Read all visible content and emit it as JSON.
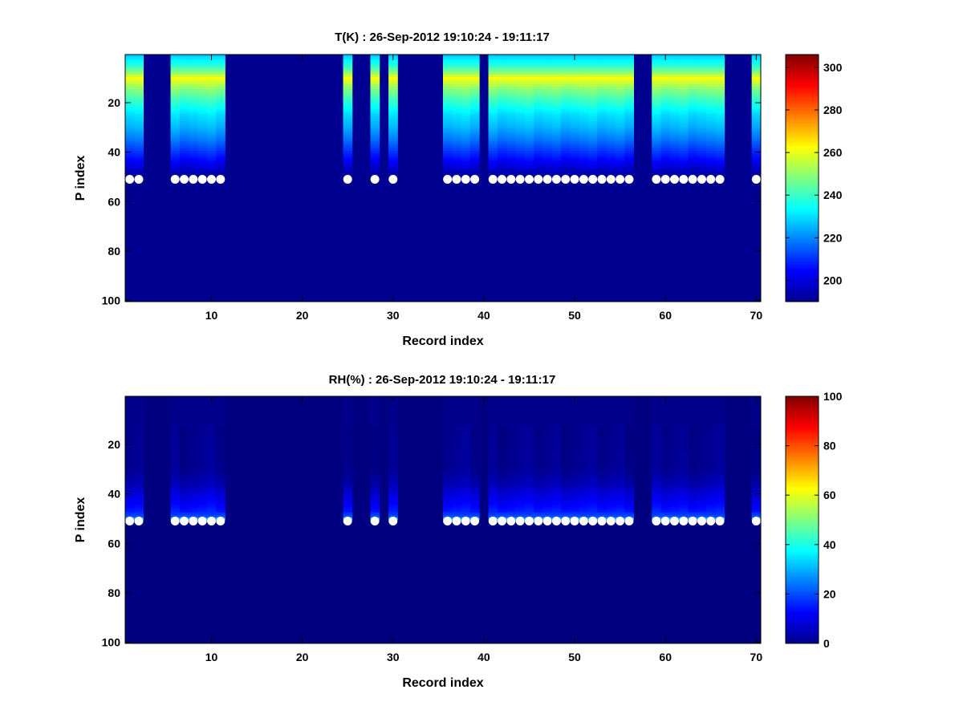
{
  "chart_data": [
    {
      "type": "heatmap",
      "title": "T(K) : 26-Sep-2012 19:10:24 - 19:11:17",
      "xlabel": "Record index",
      "ylabel": "P index",
      "xlim": [
        0.5,
        70.5
      ],
      "ylim": [
        0.5,
        100.5
      ],
      "y_reversed": true,
      "xticks": [
        10,
        20,
        30,
        40,
        50,
        60,
        70
      ],
      "yticks": [
        20,
        40,
        60,
        80,
        100
      ],
      "colormap": "jet",
      "clim": [
        190,
        306
      ],
      "colorbar_ticks": [
        200,
        220,
        240,
        260,
        280,
        300
      ],
      "background_value": 192,
      "valid_records": [
        1,
        2,
        6,
        7,
        8,
        9,
        10,
        11,
        25,
        28,
        30,
        36,
        37,
        38,
        39,
        41,
        42,
        43,
        44,
        45,
        46,
        47,
        48,
        49,
        50,
        51,
        52,
        53,
        54,
        55,
        56,
        59,
        60,
        61,
        62,
        63,
        64,
        65,
        66,
        70
      ],
      "profile_p_index": [
        1,
        5,
        8,
        10,
        12,
        15,
        20,
        25,
        30,
        35,
        40,
        45,
        48,
        50,
        51
      ],
      "profile_values": [
        228,
        238,
        250,
        262,
        256,
        248,
        238,
        230,
        225,
        218,
        210,
        202,
        196,
        193,
        192
      ],
      "markers": {
        "p_index": 51,
        "records": [
          1,
          2,
          6,
          7,
          8,
          9,
          10,
          11,
          25,
          28,
          30,
          36,
          37,
          38,
          39,
          41,
          42,
          43,
          44,
          45,
          46,
          47,
          48,
          49,
          50,
          51,
          52,
          53,
          54,
          55,
          56,
          59,
          60,
          61,
          62,
          63,
          64,
          65,
          66,
          70
        ],
        "color": "#ffffff"
      }
    },
    {
      "type": "heatmap",
      "title": "RH(%) : 26-Sep-2012 19:10:24 - 19:11:17",
      "xlabel": "Record index",
      "ylabel": "P index",
      "xlim": [
        0.5,
        70.5
      ],
      "ylim": [
        0.5,
        100.5
      ],
      "y_reversed": true,
      "xticks": [
        10,
        20,
        30,
        40,
        50,
        60,
        70
      ],
      "yticks": [
        20,
        40,
        60,
        80,
        100
      ],
      "colormap": "jet",
      "clim": [
        0,
        100
      ],
      "colorbar_ticks": [
        0,
        20,
        40,
        60,
        80,
        100
      ],
      "background_value": 0,
      "valid_records": [
        1,
        2,
        6,
        7,
        8,
        9,
        10,
        11,
        25,
        28,
        30,
        36,
        37,
        38,
        39,
        41,
        42,
        43,
        44,
        45,
        46,
        47,
        48,
        49,
        50,
        51,
        52,
        53,
        54,
        55,
        56,
        59,
        60,
        61,
        62,
        63,
        64,
        65,
        66,
        70
      ],
      "profile_p_index": [
        1,
        30,
        36,
        40,
        44,
        47,
        49,
        50,
        51
      ],
      "profile_values": [
        1,
        2,
        5,
        9,
        12,
        15,
        20,
        28,
        0
      ],
      "markers": {
        "p_index": 51,
        "records": [
          1,
          2,
          6,
          7,
          8,
          9,
          10,
          11,
          25,
          28,
          30,
          36,
          37,
          38,
          39,
          41,
          42,
          43,
          44,
          45,
          46,
          47,
          48,
          49,
          50,
          51,
          52,
          53,
          54,
          55,
          56,
          59,
          60,
          61,
          62,
          63,
          64,
          65,
          66,
          70
        ],
        "color": "#ffffff"
      }
    }
  ]
}
